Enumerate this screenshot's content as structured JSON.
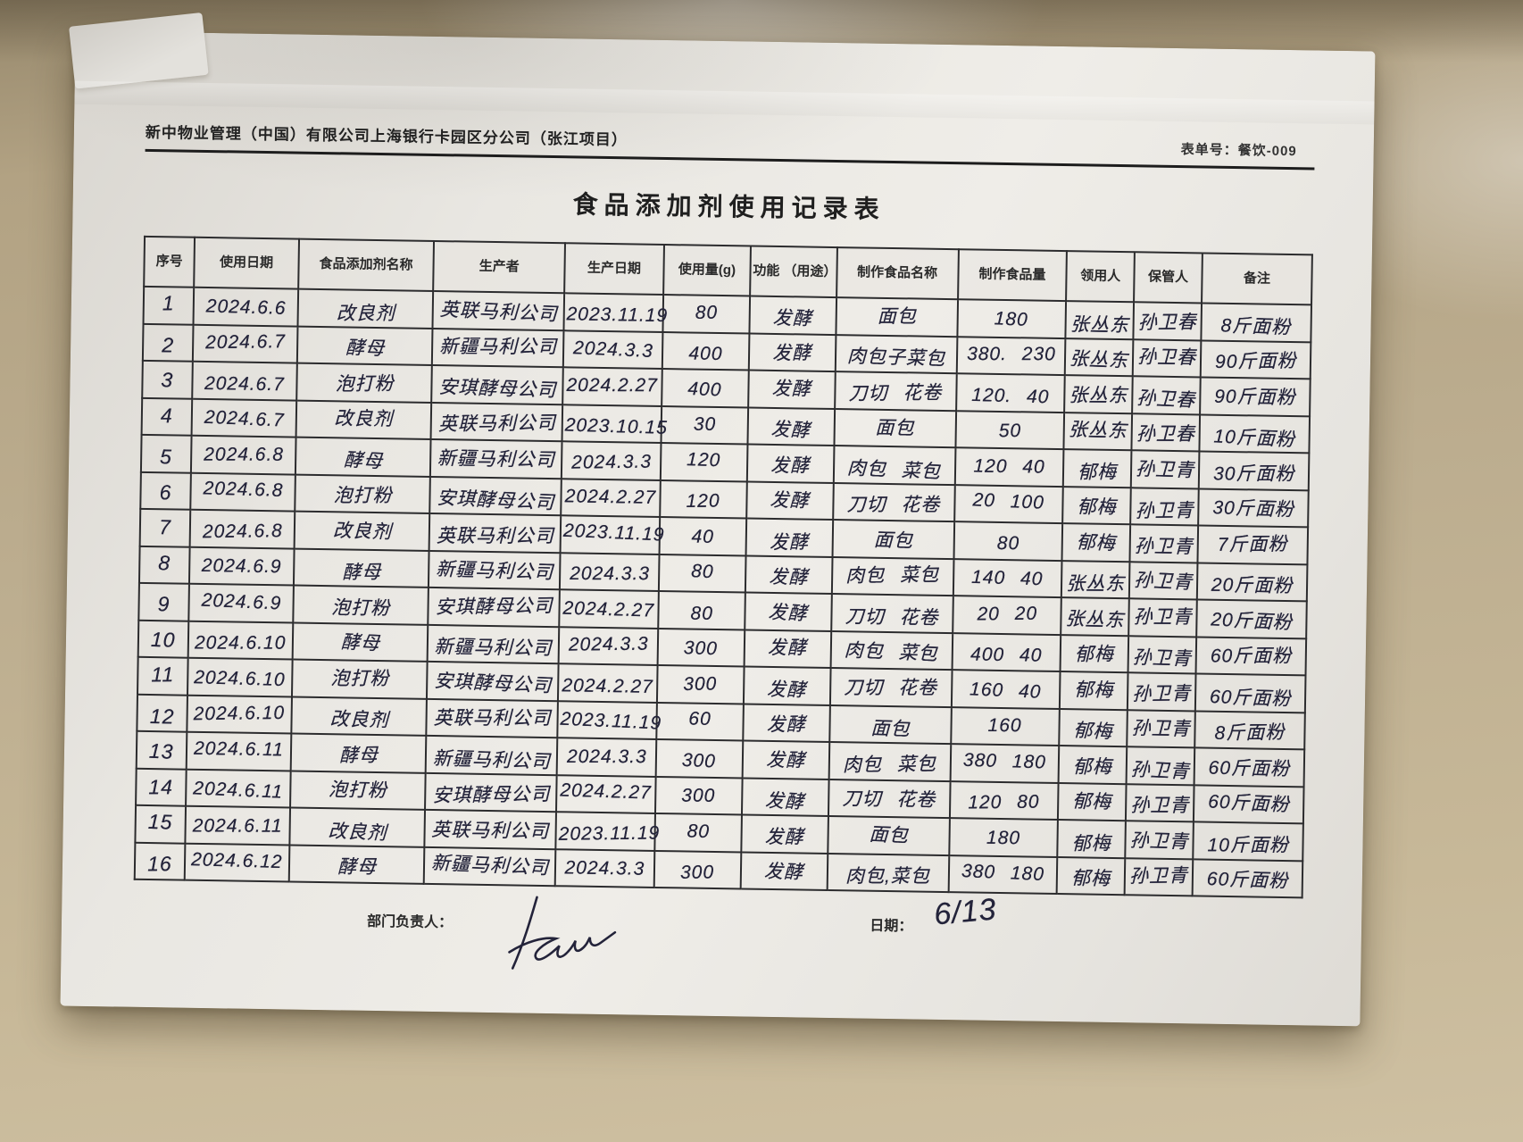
{
  "page": {
    "company": "新中物业管理（中国）有限公司上海银行卡园区分公司（张江项目）",
    "form_no": "表单号：餐饮-009",
    "title": "食品添加剂使用记录表"
  },
  "table": {
    "columns": [
      "序号",
      "使用日期",
      "食品添加剂名称",
      "生产者",
      "生产日期",
      "使用量(g)",
      "功能 （用途）",
      "制作食品名称",
      "制作食品量",
      "领用人",
      "保管人",
      "备注"
    ],
    "rows": [
      [
        "1",
        "2024.6.6",
        "改良剂",
        "英联马利公司",
        "2023.11.19",
        "80",
        "发酵",
        "面包",
        "180",
        "张丛东",
        "孙卫春",
        "8斤面粉"
      ],
      [
        "2",
        "2024.6.7",
        "酵母",
        "新疆马利公司",
        "2024.3.3",
        "400",
        "发酵",
        "肉包子菜包",
        "380. 230",
        "张丛东",
        "孙卫春",
        "90斤面粉"
      ],
      [
        "3",
        "2024.6.7",
        "泡打粉",
        "安琪酵母公司",
        "2024.2.27",
        "400",
        "发酵",
        "刀切 花卷",
        "120. 40",
        "张丛东",
        "孙卫春",
        "90斤面粉"
      ],
      [
        "4",
        "2024.6.7",
        "改良剂",
        "英联马利公司",
        "2023.10.15",
        "30",
        "发酵",
        "面包",
        "50",
        "张丛东",
        "孙卫春",
        "10斤面粉"
      ],
      [
        "5",
        "2024.6.8",
        "酵母",
        "新疆马利公司",
        "2024.3.3",
        "120",
        "发酵",
        "肉包 菜包",
        "120 40",
        "郁梅",
        "孙卫青",
        "30斤面粉"
      ],
      [
        "6",
        "2024.6.8",
        "泡打粉",
        "安琪酵母公司",
        "2024.2.27",
        "120",
        "发酵",
        "刀切 花卷",
        "20 100",
        "郁梅",
        "孙卫青",
        "30斤面粉"
      ],
      [
        "7",
        "2024.6.8",
        "改良剂",
        "英联马利公司",
        "2023.11.19",
        "40",
        "发酵",
        "面包",
        "80",
        "郁梅",
        "孙卫青",
        "7斤面粉"
      ],
      [
        "8",
        "2024.6.9",
        "酵母",
        "新疆马利公司",
        "2024.3.3",
        "80",
        "发酵",
        "肉包 菜包",
        "140 40",
        "张丛东",
        "孙卫青",
        "20斤面粉"
      ],
      [
        "9",
        "2024.6.9",
        "泡打粉",
        "安琪酵母公司",
        "2024.2.27",
        "80",
        "发酵",
        "刀切 花卷",
        "20 20",
        "张丛东",
        "孙卫青",
        "20斤面粉"
      ],
      [
        "10",
        "2024.6.10",
        "酵母",
        "新疆马利公司",
        "2024.3.3",
        "300",
        "发酵",
        "肉包 菜包",
        "400 40",
        "郁梅",
        "孙卫青",
        "60斤面粉"
      ],
      [
        "11",
        "2024.6.10",
        "泡打粉",
        "安琪酵母公司",
        "2024.2.27",
        "300",
        "发酵",
        "刀切 花卷",
        "160 40",
        "郁梅",
        "孙卫青",
        "60斤面粉"
      ],
      [
        "12",
        "2024.6.10",
        "改良剂",
        "英联马利公司",
        "2023.11.19",
        "60",
        "发酵",
        "面包",
        "160",
        "郁梅",
        "孙卫青",
        "8斤面粉"
      ],
      [
        "13",
        "2024.6.11",
        "酵母",
        "新疆马利公司",
        "2024.3.3",
        "300",
        "发酵",
        "肉包 菜包",
        "380 180",
        "郁梅",
        "孙卫青",
        "60斤面粉"
      ],
      [
        "14",
        "2024.6.11",
        "泡打粉",
        "安琪酵母公司",
        "2024.2.27",
        "300",
        "发酵",
        "刀切 花卷",
        "120 80",
        "郁梅",
        "孙卫青",
        "60斤面粉"
      ],
      [
        "15",
        "2024.6.11",
        "改良剂",
        "英联马利公司",
        "2023.11.19",
        "80",
        "发酵",
        "面包",
        "180",
        "郁梅",
        "孙卫青",
        "10斤面粉"
      ],
      [
        "16",
        "2024.6.12",
        "酵母",
        "新疆马利公司",
        "2024.3.3",
        "300",
        "发酵",
        "肉包,菜包",
        "380 180",
        "郁梅",
        "孙卫青",
        "60斤面粉"
      ]
    ]
  },
  "footer": {
    "manager_label": "部门负责人：",
    "date_label": "日期：",
    "date_value": "6/13"
  },
  "colors": {
    "ink": "#23233a",
    "paper": "#e9e7e2",
    "desk": "#bcad8f",
    "line": "#2c2c2e"
  }
}
